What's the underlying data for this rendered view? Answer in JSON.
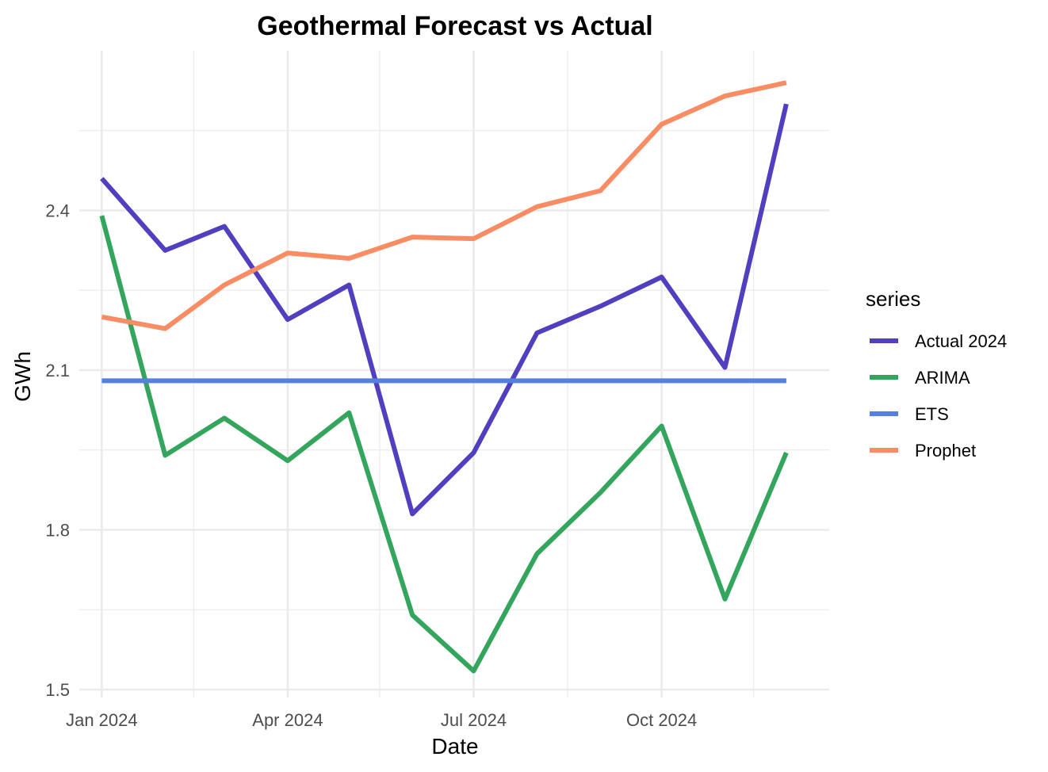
{
  "chart_data": {
    "type": "line",
    "title": "Geothermal Forecast vs Actual",
    "xlabel": "Date",
    "ylabel": "GWh",
    "x_ticks": [
      "Jan 2024",
      "Apr 2024",
      "Jul 2024",
      "Oct 2024"
    ],
    "y_ticks": [
      "1.5",
      "1.8",
      "2.1",
      "2.4"
    ],
    "ylim": [
      1.5,
      2.7
    ],
    "xlim": [
      "2023-12-21",
      "2024-12-22"
    ],
    "grid": true,
    "legend_position": "right",
    "legend_title": "series",
    "x": [
      "2024-01-01",
      "2024-02-01",
      "2024-03-01",
      "2024-04-01",
      "2024-05-01",
      "2024-06-01",
      "2024-07-01",
      "2024-08-01",
      "2024-09-01",
      "2024-10-01",
      "2024-11-01",
      "2024-12-01"
    ],
    "series": [
      {
        "name": "Actual 2024",
        "color": "#5040c0",
        "values": [
          2.46,
          2.325,
          2.37,
          2.195,
          2.26,
          1.83,
          1.945,
          2.17,
          2.22,
          2.275,
          2.105,
          2.6
        ]
      },
      {
        "name": "ARIMA",
        "color": "#34a55c",
        "values": [
          2.39,
          1.94,
          2.01,
          1.93,
          2.02,
          1.64,
          1.535,
          1.755,
          1.87,
          1.995,
          1.67,
          1.945
        ]
      },
      {
        "name": "ETS",
        "color": "#5580e0",
        "values": [
          2.08,
          2.08,
          2.08,
          2.08,
          2.08,
          2.08,
          2.08,
          2.08,
          2.08,
          2.08,
          2.08,
          2.08
        ]
      },
      {
        "name": "Prophet",
        "color": "#fa8c64",
        "values": [
          2.2,
          2.178,
          2.26,
          2.32,
          2.31,
          2.35,
          2.347,
          2.407,
          2.437,
          2.562,
          2.615,
          2.64
        ]
      }
    ]
  }
}
